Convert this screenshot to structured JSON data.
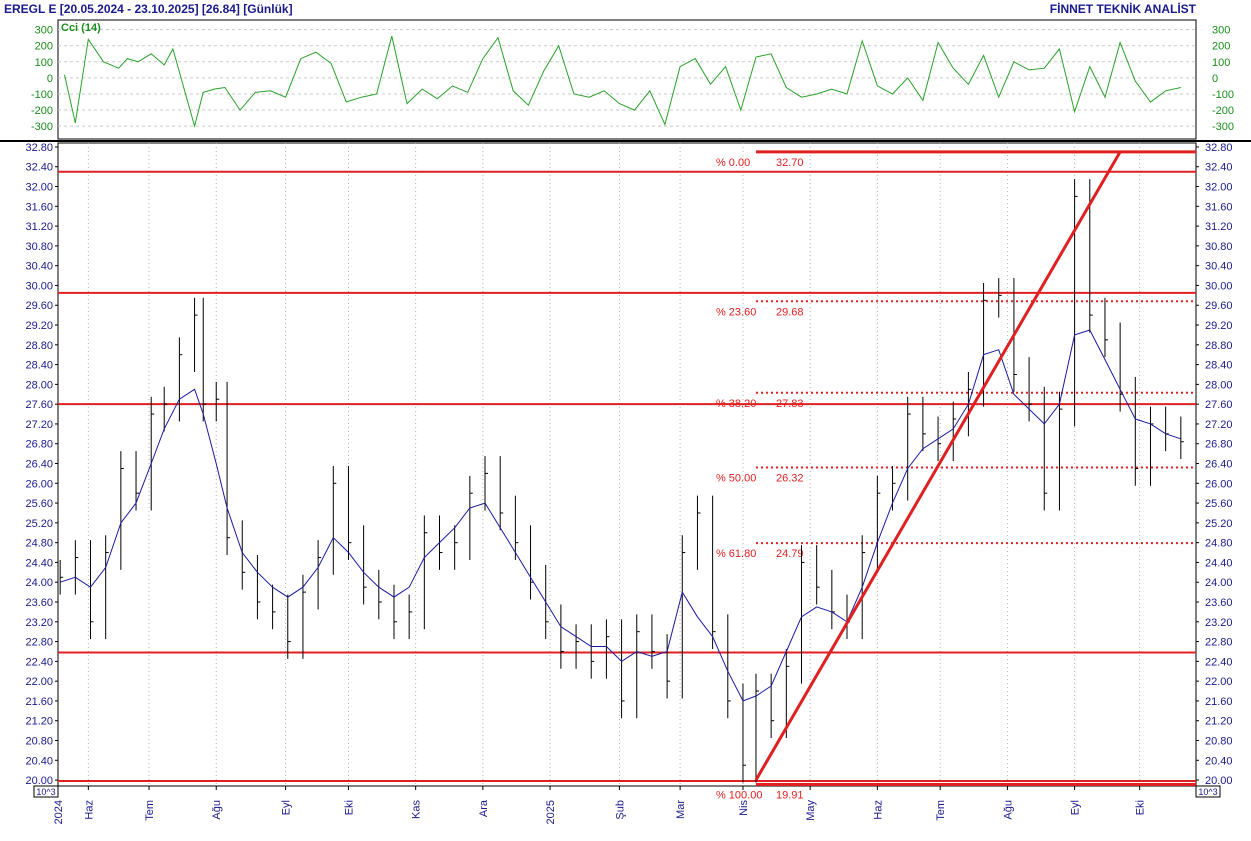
{
  "header": {
    "title": "EREGL E  [20.05.2024 - 23.10.2025]  [26.84]  [Günlük]",
    "brand": "FİNNET TEKNİK ANALİST"
  },
  "colors": {
    "axis_text": "#1a1a8c",
    "price_bars": "#000000",
    "moving_average": "#1a1aa0",
    "cci_line": "#2aa02a",
    "levels": "#e02020"
  },
  "chart_data": [
    {
      "type": "line",
      "label": "Cci (14)",
      "ylim": [
        -380,
        360
      ],
      "yticks": [
        "300",
        "200",
        "100",
        "0",
        "-100",
        "-200",
        "-300"
      ],
      "ytick_values": [
        300,
        200,
        100,
        0,
        -100,
        -200,
        -300
      ],
      "grid": true,
      "x_dates": [
        "2024-05-23",
        "2024-05-28",
        "2024-06-03",
        "2024-06-10",
        "2024-06-17",
        "2024-06-21",
        "2024-06-26",
        "2024-07-02",
        "2024-07-08",
        "2024-07-12",
        "2024-07-17",
        "2024-07-22",
        "2024-07-26",
        "2024-07-31",
        "2024-08-05",
        "2024-08-12",
        "2024-08-19",
        "2024-08-26",
        "2024-09-02",
        "2024-09-09",
        "2024-09-16",
        "2024-09-23",
        "2024-09-30",
        "2024-10-07",
        "2024-10-14",
        "2024-10-21",
        "2024-10-28",
        "2024-11-04",
        "2024-11-11",
        "2024-11-18",
        "2024-11-25",
        "2024-12-02",
        "2024-12-09",
        "2024-12-16",
        "2024-12-23",
        "2024-12-30",
        "2025-01-06",
        "2025-01-13",
        "2025-01-20",
        "2025-01-27",
        "2025-02-03",
        "2025-02-10",
        "2025-02-17",
        "2025-02-24",
        "2025-03-03",
        "2025-03-10",
        "2025-03-17",
        "2025-03-24",
        "2025-03-31",
        "2025-04-07",
        "2025-04-14",
        "2025-04-21",
        "2025-04-28",
        "2025-05-05",
        "2025-05-12",
        "2025-05-19",
        "2025-05-26",
        "2025-06-02",
        "2025-06-09",
        "2025-06-16",
        "2025-06-23",
        "2025-06-30",
        "2025-07-07",
        "2025-07-14",
        "2025-07-21",
        "2025-07-28",
        "2025-08-04",
        "2025-08-11",
        "2025-08-18",
        "2025-08-25",
        "2025-09-01",
        "2025-09-08",
        "2025-09-15",
        "2025-09-22",
        "2025-09-29",
        "2025-10-06",
        "2025-10-13",
        "2025-10-20"
      ],
      "values": [
        20,
        -280,
        240,
        100,
        60,
        120,
        100,
        150,
        80,
        180,
        -60,
        -300,
        -90,
        -70,
        -60,
        -200,
        -90,
        -80,
        -120,
        120,
        160,
        90,
        -150,
        -120,
        -100,
        260,
        -160,
        -70,
        -130,
        -50,
        -90,
        120,
        250,
        -80,
        -170,
        40,
        200,
        -100,
        -120,
        -80,
        -160,
        -200,
        -80,
        -290,
        70,
        120,
        -40,
        70,
        -200,
        130,
        150,
        -60,
        -120,
        -100,
        -70,
        -100,
        230,
        -50,
        -100,
        0,
        -140,
        220,
        60,
        -40,
        140,
        -120,
        100,
        50,
        60,
        180,
        -210,
        70,
        -120,
        220,
        -20,
        -150,
        -80,
        -60
      ]
    },
    {
      "type": "bar",
      "label": "EREGL E",
      "ylim": [
        19.88,
        32.88
      ],
      "yticks": [
        "32.80",
        "32.40",
        "32.00",
        "31.60",
        "31.20",
        "30.80",
        "30.40",
        "30.00",
        "29.60",
        "29.20",
        "28.80",
        "28.40",
        "28.00",
        "27.60",
        "27.20",
        "26.80",
        "26.40",
        "26.00",
        "25.60",
        "25.20",
        "24.80",
        "24.40",
        "24.00",
        "23.60",
        "23.20",
        "22.80",
        "22.40",
        "22.00",
        "21.60",
        "21.20",
        "20.80",
        "20.40",
        "20.00"
      ],
      "ytick_values": [
        32.8,
        32.4,
        32.0,
        31.6,
        31.2,
        30.8,
        30.4,
        30.0,
        29.6,
        29.2,
        28.8,
        28.4,
        28.0,
        27.6,
        27.2,
        26.8,
        26.4,
        26.0,
        25.6,
        25.2,
        24.8,
        24.4,
        24.0,
        23.6,
        23.2,
        22.8,
        22.4,
        22.0,
        21.6,
        21.2,
        20.8,
        20.4,
        20.0
      ],
      "x_ticks": [
        "2024",
        "Haz",
        "Tem",
        "Ağu",
        "Eyl",
        "Eki",
        "Kas",
        "Ara",
        "2025",
        "Şub",
        "Mar",
        "Nis",
        "May",
        "Haz",
        "Tem",
        "Ağu",
        "Eyl",
        "Eki"
      ],
      "x_tick_dates": [
        "2024-05-20",
        "2024-06-03",
        "2024-07-01",
        "2024-08-01",
        "2024-09-02",
        "2024-10-01",
        "2024-11-01",
        "2024-12-02",
        "2025-01-02",
        "2025-02-03",
        "2025-03-03",
        "2025-04-01",
        "2025-05-02",
        "2025-06-02",
        "2025-07-01",
        "2025-08-01",
        "2025-09-01",
        "2025-10-01"
      ],
      "unit_note": "10^3",
      "x_dates": [
        "2024-05-21",
        "2024-05-28",
        "2024-06-04",
        "2024-06-11",
        "2024-06-18",
        "2024-06-25",
        "2024-07-02",
        "2024-07-08",
        "2024-07-15",
        "2024-07-22",
        "2024-07-26",
        "2024-08-01",
        "2024-08-06",
        "2024-08-13",
        "2024-08-20",
        "2024-08-27",
        "2024-09-03",
        "2024-09-10",
        "2024-09-17",
        "2024-09-24",
        "2024-10-01",
        "2024-10-08",
        "2024-10-15",
        "2024-10-22",
        "2024-10-29",
        "2024-11-05",
        "2024-11-12",
        "2024-11-19",
        "2024-11-26",
        "2024-12-03",
        "2024-12-10",
        "2024-12-17",
        "2024-12-24",
        "2024-12-31",
        "2025-01-07",
        "2025-01-14",
        "2025-01-21",
        "2025-01-28",
        "2025-02-04",
        "2025-02-11",
        "2025-02-18",
        "2025-02-25",
        "2025-03-04",
        "2025-03-11",
        "2025-03-18",
        "2025-03-25",
        "2025-04-01",
        "2025-04-07",
        "2025-04-14",
        "2025-04-21",
        "2025-04-28",
        "2025-05-05",
        "2025-05-12",
        "2025-05-19",
        "2025-05-26",
        "2025-06-02",
        "2025-06-09",
        "2025-06-16",
        "2025-06-23",
        "2025-06-30",
        "2025-07-07",
        "2025-07-14",
        "2025-07-21",
        "2025-07-28",
        "2025-08-04",
        "2025-08-11",
        "2025-08-18",
        "2025-08-25",
        "2025-09-01",
        "2025-09-08",
        "2025-09-15",
        "2025-09-22",
        "2025-09-29",
        "2025-10-06",
        "2025-10-13",
        "2025-10-20"
      ],
      "close": [
        24.1,
        24.5,
        23.2,
        24.6,
        26.3,
        25.8,
        27.4,
        27.6,
        28.6,
        29.4,
        27.6,
        27.7,
        24.9,
        24.2,
        23.6,
        23.4,
        22.8,
        23.8,
        24.5,
        26.0,
        24.8,
        23.9,
        23.6,
        23.2,
        23.4,
        25.0,
        24.6,
        24.8,
        25.8,
        26.2,
        25.4,
        24.8,
        24.0,
        23.2,
        22.6,
        22.8,
        22.4,
        22.9,
        21.6,
        23.0,
        22.6,
        22.0,
        24.6,
        25.4,
        23.0,
        21.6,
        20.3,
        21.8,
        21.2,
        22.3,
        24.4,
        23.9,
        23.4,
        23.2,
        24.6,
        25.8,
        26.0,
        27.4,
        27.0,
        26.8,
        27.3,
        27.9,
        29.7,
        29.8,
        28.2,
        27.6,
        25.8,
        27.5,
        31.8,
        29.4,
        28.9,
        27.8,
        26.3,
        27.2,
        27.0,
        26.84
      ],
      "ma": [
        24.0,
        24.1,
        23.9,
        24.3,
        25.2,
        25.6,
        26.4,
        27.1,
        27.7,
        27.9,
        27.4,
        26.4,
        25.5,
        24.6,
        24.2,
        23.9,
        23.7,
        23.9,
        24.3,
        24.9,
        24.6,
        24.2,
        23.9,
        23.7,
        23.9,
        24.5,
        24.8,
        25.1,
        25.5,
        25.6,
        25.1,
        24.6,
        24.1,
        23.6,
        23.1,
        22.9,
        22.7,
        22.7,
        22.4,
        22.6,
        22.5,
        22.6,
        23.8,
        23.3,
        22.9,
        22.2,
        21.6,
        21.7,
        21.9,
        22.6,
        23.3,
        23.5,
        23.4,
        23.2,
        23.9,
        24.8,
        25.6,
        26.3,
        26.7,
        26.9,
        27.1,
        27.6,
        28.6,
        28.7,
        27.8,
        27.5,
        27.2,
        27.6,
        29.0,
        29.1,
        28.5,
        27.9,
        27.3,
        27.2,
        27.0,
        26.9
      ],
      "horizontal_levels": [
        32.3,
        29.85,
        27.6,
        22.58,
        19.98
      ],
      "fibonacci": [
        {
          "pct": "% 0.00",
          "price": "32.70",
          "value": 32.7
        },
        {
          "pct": "% 23.60",
          "price": "29.68",
          "value": 29.68
        },
        {
          "pct": "% 38.20",
          "price": "27.83",
          "value": 27.83
        },
        {
          "pct": "% 50.00",
          "price": "26.32",
          "value": 26.32
        },
        {
          "pct": "% 61.80",
          "price": "24.79",
          "value": 24.79
        },
        {
          "pct": "% 100.00",
          "price": "19.91",
          "value": 19.91
        }
      ],
      "trendline": {
        "start_date": "2025-04-07",
        "start_value": 20.0,
        "end_date": "2025-09-22",
        "end_value": 32.7
      }
    }
  ]
}
